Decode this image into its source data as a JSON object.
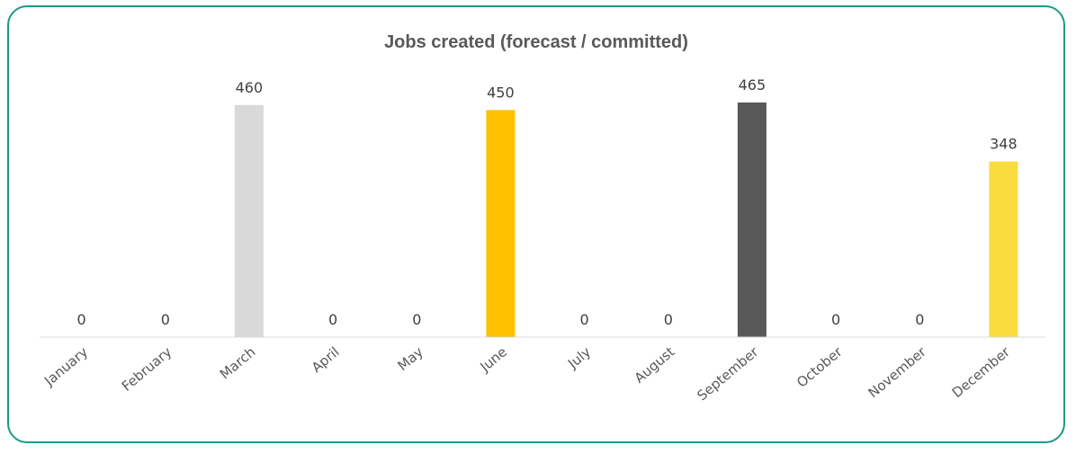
{
  "chart_data": {
    "type": "bar",
    "title": "Jobs created (forecast / committed)",
    "categories": [
      "January",
      "February",
      "March",
      "April",
      "May",
      "June",
      "July",
      "August",
      "September",
      "October",
      "November",
      "December"
    ],
    "values": [
      0,
      0,
      460,
      0,
      0,
      450,
      0,
      0,
      465,
      0,
      0,
      348
    ],
    "colors": [
      "#d9d9d9",
      "#d9d9d9",
      "#d9d9d9",
      "#ffc000",
      "#ffc000",
      "#ffc000",
      "#595959",
      "#595959",
      "#595959",
      "#f9dc3e",
      "#f9dc3e",
      "#f9dc3e"
    ],
    "xlabel": "",
    "ylabel": "",
    "ylim": [
      0,
      500
    ],
    "grid": false,
    "legend": "none"
  },
  "colors": {
    "border": "#1a9a8c",
    "axis": "#d9d9d9"
  }
}
